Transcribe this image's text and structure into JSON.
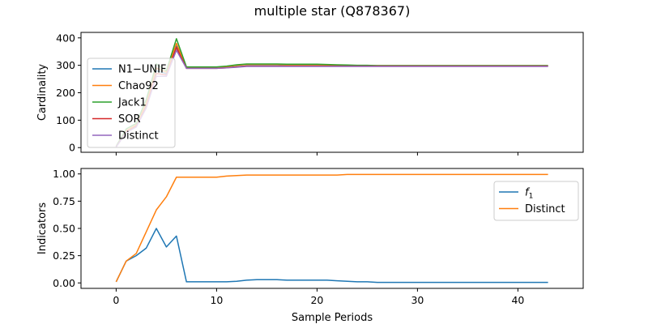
{
  "figure": {
    "title": "multiple star (Q878367)"
  },
  "chart_data": [
    {
      "type": "line",
      "title": "",
      "xlabel": "",
      "ylabel": "Cardinality",
      "xlim": [
        -3.5,
        46.5
      ],
      "ylim": [
        -17,
        420
      ],
      "x_ticks": [
        0,
        10,
        20,
        30,
        40
      ],
      "y_ticks": [
        0,
        100,
        200,
        300,
        400
      ],
      "show_x_tick_labels": false,
      "legend_position": "left",
      "x": [
        0,
        1,
        2,
        3,
        4,
        5,
        6,
        7,
        8,
        9,
        10,
        11,
        12,
        13,
        14,
        15,
        16,
        17,
        18,
        19,
        20,
        21,
        22,
        23,
        24,
        25,
        26,
        27,
        28,
        29,
        30,
        31,
        32,
        33,
        34,
        35,
        36,
        37,
        38,
        39,
        40,
        41,
        42,
        43
      ],
      "series": [
        {
          "name": "N1−UNIF",
          "color": "#1f77b4",
          "values": [
            3,
            60,
            80,
            155,
            280,
            270,
            370,
            290,
            290,
            290,
            290,
            292,
            295,
            298,
            298,
            298,
            298,
            298,
            298,
            298,
            298,
            298,
            298,
            298,
            298,
            298,
            298,
            298,
            298,
            298,
            298,
            298,
            298,
            298,
            298,
            298,
            298,
            298,
            298,
            298,
            298,
            298,
            298,
            298
          ]
        },
        {
          "name": "Chao92",
          "color": "#ff7f0e",
          "values": [
            3,
            62,
            82,
            162,
            290,
            275,
            380,
            292,
            292,
            292,
            292,
            295,
            300,
            303,
            303,
            303,
            303,
            302,
            302,
            302,
            302,
            301,
            300,
            300,
            299,
            299,
            299,
            299,
            299,
            299,
            299,
            299,
            299,
            299,
            299,
            299,
            299,
            299,
            299,
            299,
            299,
            299,
            299,
            299
          ]
        },
        {
          "name": "Jack1",
          "color": "#2ca02c",
          "values": [
            5,
            68,
            88,
            175,
            305,
            280,
            397,
            294,
            294,
            294,
            294,
            297,
            302,
            305,
            305,
            305,
            305,
            304,
            304,
            304,
            304,
            303,
            302,
            301,
            300,
            300,
            299,
            299,
            299,
            299,
            299,
            299,
            299,
            299,
            299,
            299,
            299,
            299,
            299,
            299,
            299,
            299,
            299,
            299
          ]
        },
        {
          "name": "SOR",
          "color": "#d62728",
          "values": [
            3,
            58,
            78,
            150,
            270,
            265,
            365,
            289,
            289,
            289,
            289,
            291,
            294,
            297,
            297,
            297,
            297,
            297,
            297,
            297,
            297,
            297,
            297,
            297,
            297,
            297,
            297,
            297,
            297,
            297,
            297,
            297,
            297,
            297,
            297,
            297,
            297,
            297,
            297,
            297,
            297,
            297,
            297,
            297
          ]
        },
        {
          "name": "Distinct",
          "color": "#9467bd",
          "values": [
            2,
            55,
            75,
            145,
            260,
            260,
            355,
            289,
            289,
            289,
            289,
            291,
            293,
            296,
            296,
            296,
            296,
            296,
            296,
            296,
            296,
            296,
            296,
            296,
            296,
            296,
            296,
            296,
            296,
            296,
            296,
            296,
            296,
            296,
            296,
            296,
            296,
            296,
            296,
            296,
            296,
            296,
            296,
            296
          ]
        }
      ]
    },
    {
      "type": "line",
      "title": "",
      "xlabel": "Sample Periods",
      "ylabel": "Indicators",
      "xlim": [
        -3.5,
        46.5
      ],
      "ylim": [
        -0.05,
        1.05
      ],
      "x_ticks": [
        0,
        10,
        20,
        30,
        40
      ],
      "y_ticks": [
        0.0,
        0.25,
        0.5,
        0.75,
        1.0
      ],
      "y_tick_labels": [
        "0.00",
        "0.25",
        "0.50",
        "0.75",
        "1.00"
      ],
      "show_x_tick_labels": true,
      "legend_position": "right",
      "x": [
        0,
        1,
        2,
        3,
        4,
        5,
        6,
        7,
        8,
        9,
        10,
        11,
        12,
        13,
        14,
        15,
        16,
        17,
        18,
        19,
        20,
        21,
        22,
        23,
        24,
        25,
        26,
        27,
        28,
        29,
        30,
        31,
        32,
        33,
        34,
        35,
        36,
        37,
        38,
        39,
        40,
        41,
        42,
        43
      ],
      "series": [
        {
          "name": "f",
          "name_subscript": "1",
          "color": "#1f77b4",
          "values": [
            0.01,
            0.2,
            0.25,
            0.32,
            0.5,
            0.33,
            0.43,
            0.01,
            0.01,
            0.01,
            0.01,
            0.01,
            0.015,
            0.025,
            0.03,
            0.03,
            0.03,
            0.025,
            0.025,
            0.025,
            0.025,
            0.025,
            0.02,
            0.015,
            0.01,
            0.01,
            0.005,
            0.005,
            0.005,
            0.005,
            0.005,
            0.005,
            0.005,
            0.005,
            0.005,
            0.005,
            0.005,
            0.005,
            0.005,
            0.005,
            0.005,
            0.005,
            0.005,
            0.005
          ]
        },
        {
          "name": "Distinct",
          "color": "#ff7f0e",
          "values": [
            0.01,
            0.2,
            0.27,
            0.47,
            0.67,
            0.79,
            0.97,
            0.97,
            0.97,
            0.97,
            0.97,
            0.98,
            0.985,
            0.99,
            0.99,
            0.99,
            0.99,
            0.99,
            0.99,
            0.99,
            0.99,
            0.99,
            0.99,
            0.995,
            0.995,
            0.995,
            0.995,
            0.995,
            0.995,
            0.995,
            0.995,
            0.995,
            0.995,
            0.995,
            0.995,
            0.995,
            0.995,
            0.995,
            0.995,
            0.995,
            0.995,
            0.995,
            0.995,
            0.995
          ]
        }
      ]
    }
  ]
}
